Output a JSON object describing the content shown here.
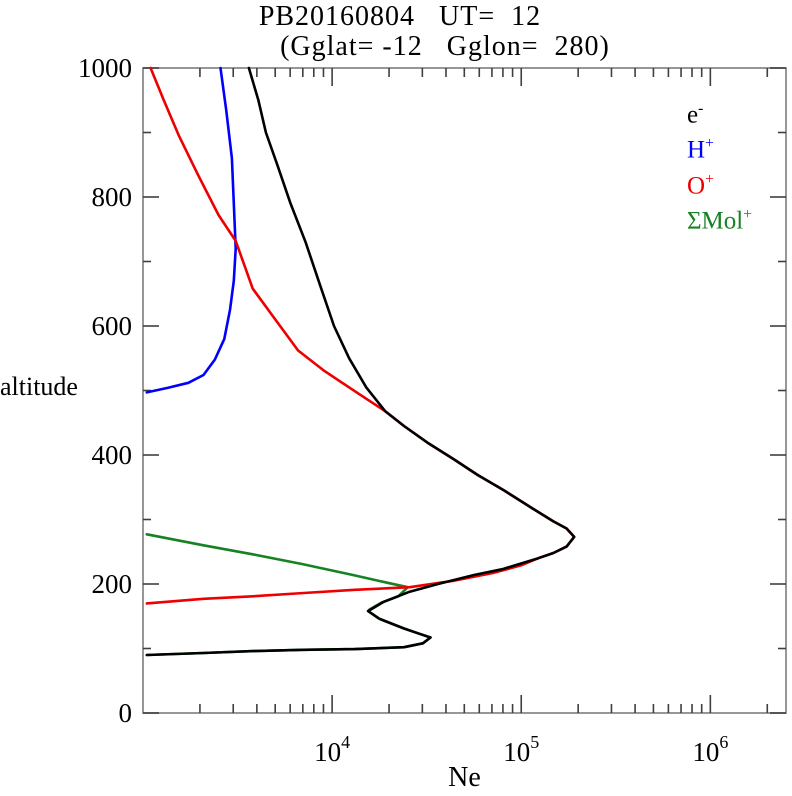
{
  "figure": {
    "background": "#ffffff",
    "frame_color": "#7d7d7d",
    "tick_color": "#3f3f3f",
    "text_color": "#000000"
  },
  "chart_data": {
    "type": "line",
    "title": "PB20160804   UT=  12",
    "subtitle": "(Gglat= -12   Gglon=  280)",
    "xlabel": "Ne",
    "ylabel": "altitude",
    "x_scale": "log10",
    "xlim_log10": [
      3.0,
      6.4
    ],
    "ylim": [
      0,
      1000
    ],
    "x_major_tick_exponents": [
      4,
      5,
      6
    ],
    "x_major_tick_labels": [
      "10^4",
      "10^5",
      "10^6"
    ],
    "y_major_ticks": [
      0,
      200,
      400,
      600,
      800,
      1000
    ],
    "y_minor_tick_step": 100,
    "grid": false,
    "legend_position": "top-right-inside",
    "series": [
      {
        "name": "e-",
        "label_base": "e",
        "label_sup": "-",
        "color": "#000000",
        "z": 4,
        "points_log10ne_alt": [
          [
            3.56,
            1000
          ],
          [
            3.61,
            950
          ],
          [
            3.65,
            900
          ],
          [
            3.71,
            850
          ],
          [
            3.78,
            790
          ],
          [
            3.86,
            730
          ],
          [
            3.94,
            660
          ],
          [
            4.01,
            600
          ],
          [
            4.09,
            550
          ],
          [
            4.18,
            505
          ],
          [
            4.28,
            468
          ],
          [
            4.38,
            445
          ],
          [
            4.51,
            418
          ],
          [
            4.64,
            394
          ],
          [
            4.77,
            369
          ],
          [
            4.91,
            345
          ],
          [
            5.06,
            317
          ],
          [
            5.17,
            297
          ],
          [
            5.24,
            286
          ],
          [
            5.28,
            273
          ],
          [
            5.24,
            258
          ],
          [
            5.17,
            248
          ],
          [
            5.09,
            240
          ],
          [
            4.9,
            223
          ],
          [
            4.75,
            214
          ],
          [
            4.56,
            200
          ],
          [
            4.41,
            188
          ],
          [
            4.27,
            172
          ],
          [
            4.19,
            158
          ],
          [
            4.25,
            146
          ],
          [
            4.38,
            131
          ],
          [
            4.47,
            122
          ],
          [
            4.52,
            117
          ],
          [
            4.48,
            108
          ],
          [
            4.38,
            102
          ],
          [
            4.12,
            99
          ],
          [
            3.85,
            98
          ],
          [
            3.58,
            96
          ],
          [
            3.32,
            93
          ],
          [
            3.02,
            90
          ]
        ]
      },
      {
        "name": "H+",
        "label_base": "H",
        "label_sup": "+",
        "color": "#0000ff",
        "z": 2,
        "points_log10ne_alt": [
          [
            3.41,
            1000
          ],
          [
            3.44,
            935
          ],
          [
            3.47,
            860
          ],
          [
            3.48,
            790
          ],
          [
            3.49,
            720
          ],
          [
            3.48,
            670
          ],
          [
            3.46,
            625
          ],
          [
            3.43,
            580
          ],
          [
            3.38,
            548
          ],
          [
            3.32,
            524
          ],
          [
            3.24,
            512
          ],
          [
            3.13,
            504
          ],
          [
            3.02,
            497
          ]
        ]
      },
      {
        "name": "O+",
        "label_base": "O",
        "label_sup": "+",
        "color": "#ee0000",
        "z": 3,
        "points_log10ne_alt": [
          [
            3.04,
            1000
          ],
          [
            3.11,
            950
          ],
          [
            3.19,
            895
          ],
          [
            3.29,
            835
          ],
          [
            3.4,
            772
          ],
          [
            3.49,
            732
          ],
          [
            3.58,
            658
          ],
          [
            3.7,
            610
          ],
          [
            3.82,
            562
          ],
          [
            3.96,
            530
          ],
          [
            4.14,
            495
          ],
          [
            4.28,
            468
          ],
          [
            4.38,
            445
          ],
          [
            4.51,
            418
          ],
          [
            4.64,
            394
          ],
          [
            4.77,
            369
          ],
          [
            4.91,
            345
          ],
          [
            5.06,
            317
          ],
          [
            5.17,
            297
          ],
          [
            5.24,
            286
          ],
          [
            5.28,
            273
          ],
          [
            5.24,
            258
          ],
          [
            5.17,
            248
          ],
          [
            5.09,
            240
          ],
          [
            5.0,
            229
          ],
          [
            4.85,
            217
          ],
          [
            4.64,
            205
          ],
          [
            4.41,
            195
          ],
          [
            4.12,
            191
          ],
          [
            3.85,
            186
          ],
          [
            3.58,
            181
          ],
          [
            3.32,
            177
          ],
          [
            3.02,
            170
          ]
        ]
      },
      {
        "name": "SMol+",
        "label_base": "ΣMol",
        "label_sup": "+",
        "color": "#178223",
        "z": 1,
        "points_log10ne_alt": [
          [
            3.02,
            277
          ],
          [
            3.32,
            260
          ],
          [
            3.58,
            246
          ],
          [
            3.84,
            231
          ],
          [
            4.11,
            214
          ],
          [
            4.29,
            202
          ],
          [
            4.4,
            195
          ],
          [
            4.35,
            181
          ],
          [
            4.26,
            171
          ],
          [
            4.2,
            161
          ],
          [
            4.19,
            158
          ],
          [
            4.25,
            146
          ],
          [
            4.38,
            131
          ],
          [
            4.47,
            122
          ],
          [
            4.52,
            117
          ],
          [
            4.48,
            108
          ],
          [
            4.38,
            102
          ],
          [
            4.12,
            99
          ],
          [
            3.85,
            98
          ],
          [
            3.58,
            96
          ],
          [
            3.32,
            93
          ],
          [
            3.02,
            90
          ]
        ]
      }
    ]
  }
}
